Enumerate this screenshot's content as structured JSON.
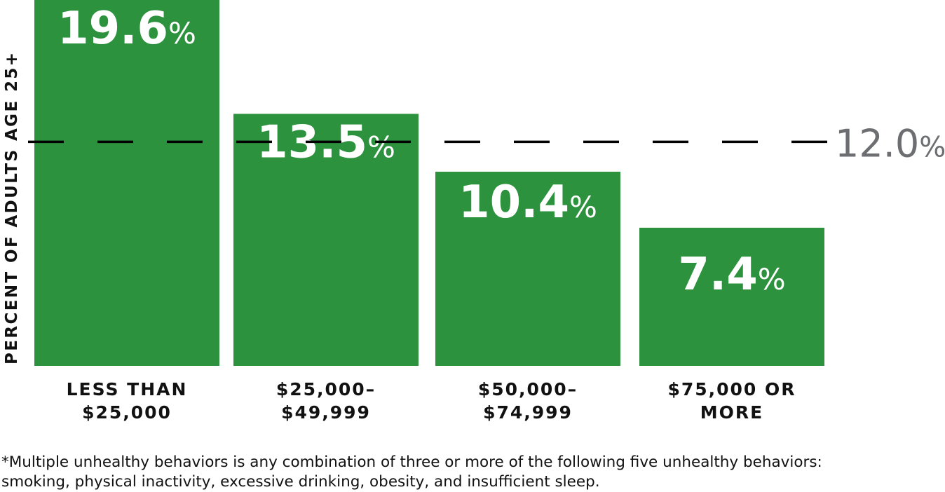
{
  "chart_data": {
    "type": "bar",
    "ylabel": "PERCENT OF ADULTS AGE 25+",
    "categories": [
      [
        "LESS THAN",
        "$25,000"
      ],
      [
        "$25,000–",
        "$49,999"
      ],
      [
        "$50,000–",
        "$74,999"
      ],
      [
        "$75,000 OR",
        "MORE"
      ]
    ],
    "values": [
      19.6,
      13.5,
      10.4,
      7.4
    ],
    "value_labels": [
      "19.6",
      "13.5",
      "10.4",
      "7.4"
    ],
    "unit": "%",
    "reference_line": {
      "value": 12.0,
      "label": "12.0",
      "unit": "%",
      "style": "dashed"
    },
    "ylim": [
      0,
      19.6
    ],
    "grid": false,
    "colors": {
      "bar": "#2c923e",
      "bar_label": "#ffffff",
      "reference_line": "#000000",
      "reference_label": "#6d6e71",
      "text": "#111111"
    }
  },
  "footnote": [
    "*Multiple unhealthy behaviors is any combination of three or more of the following five unhealthy behaviors:",
    "smoking, physical inactivity, excessive drinking, obesity, and insufficient sleep."
  ]
}
